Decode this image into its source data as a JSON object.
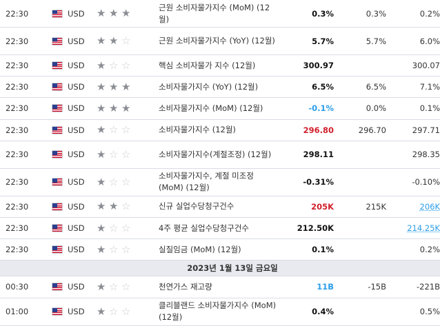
{
  "rows_before": [
    {
      "time": "22:30",
      "currency": "USD",
      "importance": 3,
      "event": "근원 소비자물가지수 (MoM) (12월)",
      "actual": "0.3%",
      "actual_color": "#111111",
      "forecast": "0.3%",
      "previous": "0.2%",
      "previous_link": false,
      "tall": true
    },
    {
      "time": "22:30",
      "currency": "USD",
      "importance": 2,
      "event": "근원 소비자물가지수 (YoY) (12월)",
      "actual": "5.7%",
      "actual_color": "#111111",
      "forecast": "5.7%",
      "previous": "6.0%",
      "previous_link": false,
      "tall": true
    },
    {
      "time": "22:30",
      "currency": "USD",
      "importance": 1,
      "event": "핵심 소비자물가 지수 (12월)",
      "actual": "300.97",
      "actual_color": "#111111",
      "forecast": "",
      "previous": "300.07",
      "previous_link": false,
      "tall": false
    },
    {
      "time": "22:30",
      "currency": "USD",
      "importance": 3,
      "event": "소비자물가지수 (YoY) (12월)",
      "actual": "6.5%",
      "actual_color": "#111111",
      "forecast": "6.5%",
      "previous": "7.1%",
      "previous_link": false,
      "tall": false
    },
    {
      "time": "22:30",
      "currency": "USD",
      "importance": 3,
      "event": "소비자물가지수 (MoM) (12월)",
      "actual": "-0.1%",
      "actual_color": "#2b9de9",
      "forecast": "0.0%",
      "previous": "0.1%",
      "previous_link": false,
      "tall": false
    },
    {
      "time": "22:30",
      "currency": "USD",
      "importance": 1,
      "event": "소비자물가지수 (12월)",
      "actual": "296.80",
      "actual_color": "#d11f2c",
      "forecast": "296.70",
      "previous": "297.71",
      "previous_link": false,
      "tall": false
    },
    {
      "time": "22:30",
      "currency": "USD",
      "importance": 1,
      "event": "소비자물가지수(계절조정) (12월)",
      "actual": "298.11",
      "actual_color": "#111111",
      "forecast": "",
      "previous": "298.35",
      "previous_link": false,
      "tall": true
    },
    {
      "time": "22:30",
      "currency": "USD",
      "importance": 1,
      "event": "소비자물가지수, 계절 미조정 (MoM) (12월)",
      "actual": "-0.31%",
      "actual_color": "#111111",
      "forecast": "",
      "previous": "-0.10%",
      "previous_link": false,
      "tall": true
    },
    {
      "time": "22:30",
      "currency": "USD",
      "importance": 2,
      "event": "신규 실업수당청구건수",
      "actual": "205K",
      "actual_color": "#d11f2c",
      "forecast": "215K",
      "previous": "206K",
      "previous_link": true,
      "tall": false
    },
    {
      "time": "22:30",
      "currency": "USD",
      "importance": 1,
      "event": "4주 평균 실업수당청구건수",
      "actual": "212.50K",
      "actual_color": "#111111",
      "forecast": "",
      "previous": "214.25K",
      "previous_link": true,
      "tall": false
    },
    {
      "time": "22:30",
      "currency": "USD",
      "importance": 1,
      "event": "실질임금 (MoM) (12월)",
      "actual": "0.1%",
      "actual_color": "#111111",
      "forecast": "",
      "previous": "0.2%",
      "previous_link": false,
      "tall": false
    }
  ],
  "date_header": "2023년 1월 13일 금요일",
  "rows_after": [
    {
      "time": "00:30",
      "currency": "USD",
      "importance": 1,
      "event": "천연가스 재고량",
      "actual": "11B",
      "actual_color": "#2b9de9",
      "forecast": "-15B",
      "previous": "-221B",
      "previous_link": false,
      "tall": false
    },
    {
      "time": "01:00",
      "currency": "USD",
      "importance": 1,
      "event": "클리블랜드 소비자물가지수 (MoM) (12월)",
      "actual": "0.4%",
      "actual_color": "#111111",
      "forecast": "",
      "previous": "0.5%",
      "previous_link": false,
      "tall": true
    }
  ]
}
